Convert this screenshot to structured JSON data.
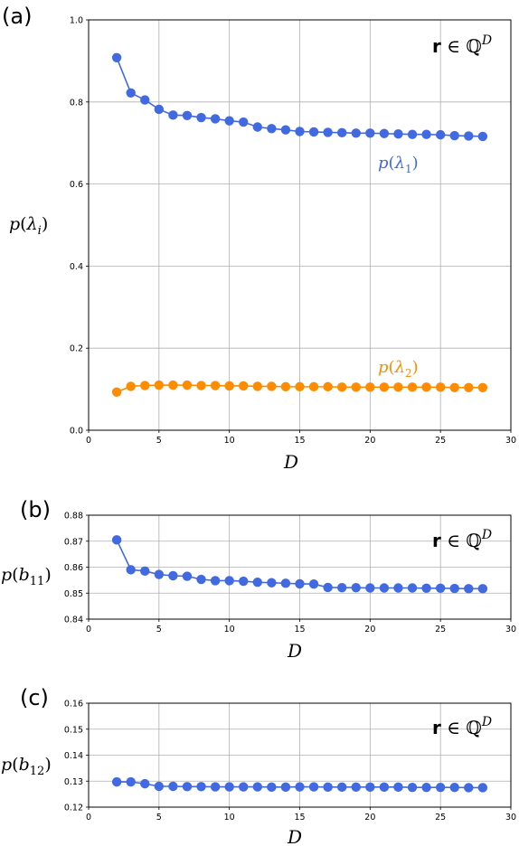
{
  "chart_data": [
    {
      "panel": "(a)",
      "type": "line",
      "xlabel": "D",
      "ylabel": "p(λ_i)",
      "annotation": "r ∈ ℚ^D",
      "xlim": [
        0,
        30
      ],
      "ylim": [
        0,
        1.0
      ],
      "xticks": [
        0,
        5,
        10,
        15,
        20,
        25,
        30
      ],
      "yticks": [
        "0.0",
        "0.2",
        "0.4",
        "0.6",
        "0.8",
        "1.0"
      ],
      "grid": true,
      "x": [
        2,
        3,
        4,
        5,
        6,
        7,
        8,
        9,
        10,
        11,
        12,
        13,
        14,
        15,
        16,
        17,
        18,
        19,
        20,
        21,
        22,
        23,
        24,
        25,
        26,
        27,
        28
      ],
      "series": [
        {
          "name": "p(λ1)",
          "color": "#4169e1",
          "values": [
            0.908,
            0.822,
            0.805,
            0.782,
            0.768,
            0.767,
            0.762,
            0.759,
            0.754,
            0.751,
            0.739,
            0.735,
            0.732,
            0.728,
            0.727,
            0.726,
            0.725,
            0.724,
            0.724,
            0.723,
            0.722,
            0.721,
            0.721,
            0.72,
            0.718,
            0.717,
            0.716
          ]
        },
        {
          "name": "p(λ2)",
          "color": "#ff8c00",
          "values": [
            0.093,
            0.107,
            0.109,
            0.11,
            0.11,
            0.11,
            0.109,
            0.109,
            0.108,
            0.108,
            0.107,
            0.107,
            0.106,
            0.106,
            0.106,
            0.106,
            0.105,
            0.105,
            0.105,
            0.105,
            0.105,
            0.105,
            0.105,
            0.105,
            0.104,
            0.104,
            0.104
          ]
        }
      ]
    },
    {
      "panel": "(b)",
      "type": "line",
      "xlabel": "D",
      "ylabel": "p(b_11)",
      "annotation": "r ∈ ℚ^D",
      "xlim": [
        0,
        30
      ],
      "ylim": [
        0.84,
        0.88
      ],
      "xticks": [
        0,
        5,
        10,
        15,
        20,
        25,
        30
      ],
      "yticks": [
        "0.84",
        "0.85",
        "0.86",
        "0.87",
        "0.88"
      ],
      "grid": true,
      "x": [
        2,
        3,
        4,
        5,
        6,
        7,
        8,
        9,
        10,
        11,
        12,
        13,
        14,
        15,
        16,
        17,
        18,
        19,
        20,
        21,
        22,
        23,
        24,
        25,
        26,
        27,
        28
      ],
      "series": [
        {
          "color": "#4169e1",
          "values": [
            0.8705,
            0.859,
            0.8585,
            0.8572,
            0.8567,
            0.8565,
            0.8553,
            0.8548,
            0.8548,
            0.8546,
            0.8542,
            0.854,
            0.8538,
            0.8536,
            0.8535,
            0.8522,
            0.8521,
            0.8521,
            0.852,
            0.852,
            0.852,
            0.852,
            0.8519,
            0.8519,
            0.8518,
            0.8517,
            0.8517
          ]
        }
      ]
    },
    {
      "panel": "(c)",
      "type": "line",
      "xlabel": "D",
      "ylabel": "p(b_12)",
      "annotation": "r ∈ ℚ^D",
      "xlim": [
        0,
        30
      ],
      "ylim": [
        0.12,
        0.16
      ],
      "xticks": [
        0,
        5,
        10,
        15,
        20,
        25,
        30
      ],
      "yticks": [
        "0.12",
        "0.13",
        "0.14",
        "0.15",
        "0.16"
      ],
      "grid": true,
      "x": [
        2,
        3,
        4,
        5,
        6,
        7,
        8,
        9,
        10,
        11,
        12,
        13,
        14,
        15,
        16,
        17,
        18,
        19,
        20,
        21,
        22,
        23,
        24,
        25,
        26,
        27,
        28
      ],
      "series": [
        {
          "color": "#4169e1",
          "values": [
            0.1297,
            0.1297,
            0.129,
            0.128,
            0.128,
            0.1279,
            0.1279,
            0.1278,
            0.1278,
            0.1278,
            0.1278,
            0.1277,
            0.1277,
            0.1278,
            0.1278,
            0.1277,
            0.1277,
            0.1277,
            0.1277,
            0.1277,
            0.1277,
            0.1276,
            0.1276,
            0.1276,
            0.1276,
            0.1275,
            0.1275
          ]
        }
      ]
    }
  ]
}
